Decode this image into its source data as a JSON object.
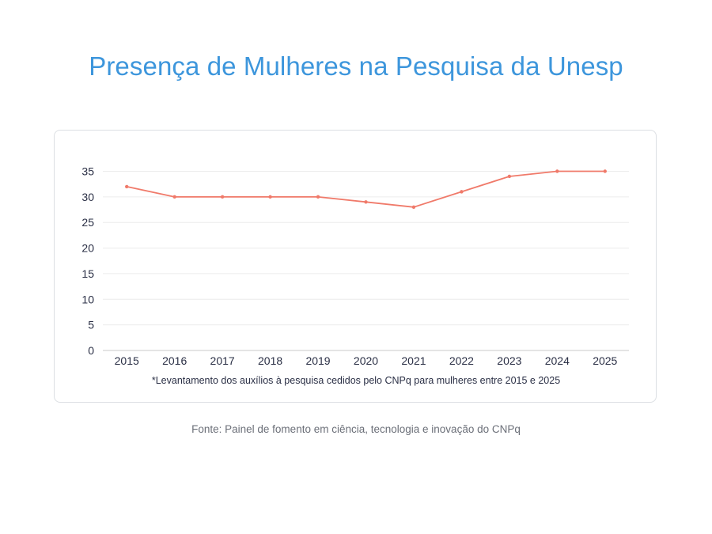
{
  "page": {
    "title": "Presença de Mulheres na Pesquisa da Unesp",
    "footnote": "*Levantamento dos auxílios à pesquisa cedidos pelo CNPq para mulheres entre 2015 e 2025",
    "source": "Fonte: Painel de fomento em ciência, tecnologia e inovação do CNPq"
  },
  "chart_data": {
    "type": "line",
    "title": "Presença de Mulheres na Pesquisa da Unesp",
    "xlabel": "",
    "ylabel": "",
    "categories": [
      "2015",
      "2016",
      "2017",
      "2018",
      "2019",
      "2020",
      "2021",
      "2022",
      "2023",
      "2024",
      "2025"
    ],
    "series": [
      {
        "values": [
          32,
          30,
          30,
          30,
          30,
          29,
          28,
          31,
          34,
          35,
          35
        ]
      }
    ],
    "ylim": [
      0,
      35
    ],
    "yticks": [
      0,
      5,
      10,
      15,
      20,
      25,
      30,
      35
    ],
    "grid": true,
    "legend": "none",
    "colors": {
      "line": "#f07a6a",
      "grid": "#ececec",
      "axis": "#c8c8c8",
      "title": "#3d96dc"
    }
  }
}
